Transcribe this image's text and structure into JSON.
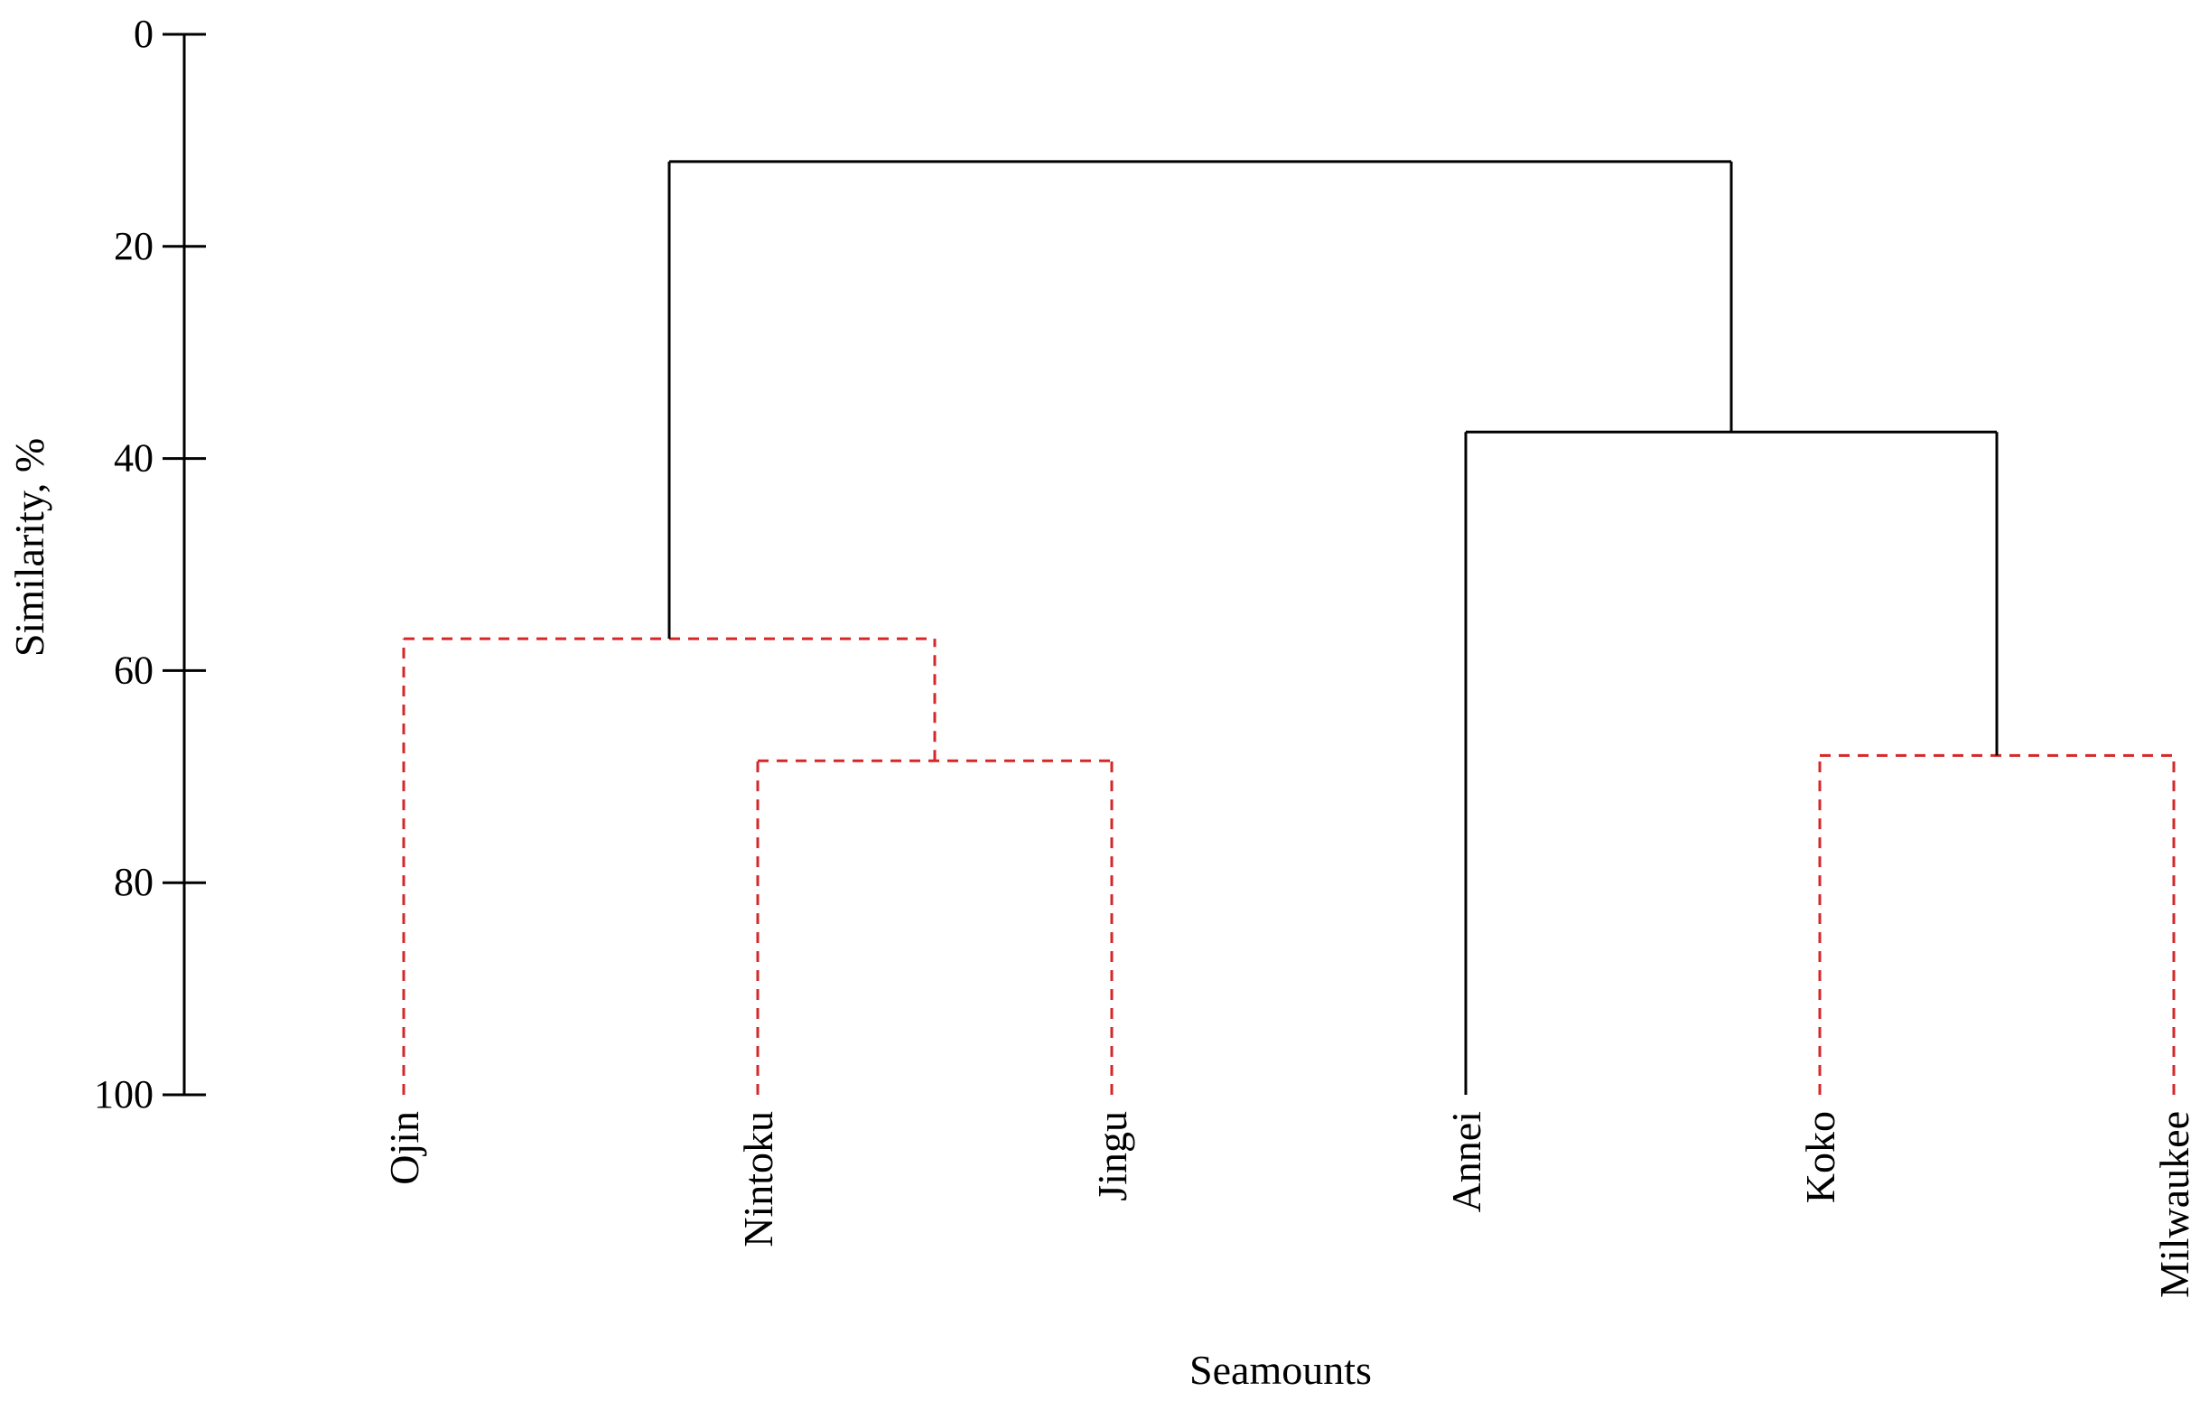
{
  "chart_data": {
    "type": "dendrogram",
    "title": "",
    "xlabel": "Seamounts",
    "ylabel": "Similarity, %",
    "ylim": [
      0,
      100
    ],
    "y_inverted": true,
    "yticks": [
      0,
      20,
      40,
      60,
      80,
      100
    ],
    "grid": false,
    "leaves": [
      "Ojin",
      "Nintoku",
      "Jingu",
      "Annei",
      "Koko",
      "Milwaukee"
    ],
    "merges": [
      {
        "id": "n1",
        "left": "Nintoku",
        "right": "Jingu",
        "similarity": 68.5,
        "style": "dashed",
        "color": "#d62728"
      },
      {
        "id": "n2",
        "left": "Ojin",
        "right": "n1",
        "similarity": 57,
        "style": "dashed",
        "color": "#d62728"
      },
      {
        "id": "n3",
        "left": "Koko",
        "right": "Milwaukee",
        "similarity": 68,
        "style": "dashed",
        "color": "#d62728"
      },
      {
        "id": "n4",
        "left": "Annei",
        "right": "n3",
        "similarity": 37.5,
        "style": "solid",
        "color": "#000000"
      },
      {
        "id": "n5",
        "left": "n2",
        "right": "n4",
        "similarity": 12,
        "style": "solid",
        "color": "#000000"
      }
    ],
    "colors": {
      "solid": "#000000",
      "dashed": "#d62728"
    }
  }
}
